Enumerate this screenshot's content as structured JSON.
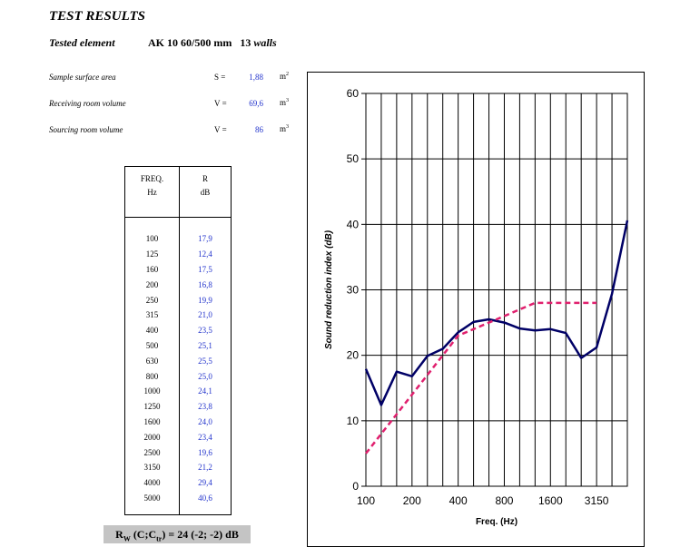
{
  "header": {
    "title": "TEST RESULTS",
    "tested_label": "Tested element",
    "tested_value": "AK 10 60/500 mm",
    "tested_count": "13",
    "tested_suffix": "walls"
  },
  "properties": [
    {
      "label": "Sample surface area",
      "symbol": "S =",
      "value": "1,88",
      "unit": "m",
      "exp": "2"
    },
    {
      "label": "Receiving room volume",
      "symbol": "V =",
      "value": "69,6",
      "unit": "m",
      "exp": "3"
    },
    {
      "label": "Sourcing room volume",
      "symbol": "V =",
      "value": "86",
      "unit": "m",
      "exp": "3"
    }
  ],
  "table": {
    "col1_header": "FREQ.",
    "col1_unit": "Hz",
    "col2_header": "R",
    "col2_unit": "dB",
    "rows": [
      [
        "100",
        "17,9"
      ],
      [
        "125",
        "12,4"
      ],
      [
        "160",
        "17,5"
      ],
      [
        "200",
        "16,8"
      ],
      [
        "250",
        "19,9"
      ],
      [
        "315",
        "21,0"
      ],
      [
        "400",
        "23,5"
      ],
      [
        "500",
        "25,1"
      ],
      [
        "630",
        "25,5"
      ],
      [
        "800",
        "25,0"
      ],
      [
        "1000",
        "24,1"
      ],
      [
        "1250",
        "23,8"
      ],
      [
        "1600",
        "24,0"
      ],
      [
        "2000",
        "23,4"
      ],
      [
        "2500",
        "19,6"
      ],
      [
        "3150",
        "21,2"
      ],
      [
        "4000",
        "29,4"
      ],
      [
        "5000",
        "40,6"
      ]
    ]
  },
  "rating": {
    "r": "R",
    "w": "W",
    "mid": " (C;C",
    "tr": "tr",
    "end": ") = 24 (-2; -2) dB"
  },
  "chart_data": {
    "type": "line",
    "x": [
      100,
      125,
      160,
      200,
      250,
      315,
      400,
      500,
      630,
      800,
      1000,
      1250,
      1600,
      2000,
      2500,
      3150,
      4000,
      5000
    ],
    "xlabel": "Freq.  (Hz)",
    "ylabel": "Sound reduction index (dB)",
    "x_tick_labels": [
      "100",
      "200",
      "400",
      "800",
      "1600",
      "3150"
    ],
    "x_tick_values": [
      100,
      200,
      400,
      800,
      1600,
      3150
    ],
    "ylim": [
      0,
      60
    ],
    "y_ticks": [
      0,
      10,
      20,
      30,
      40,
      50,
      60
    ],
    "grid": true,
    "series": [
      {
        "color": "#000066",
        "style": "solid",
        "values": [
          17.9,
          12.4,
          17.5,
          16.8,
          19.9,
          21.0,
          23.5,
          25.1,
          25.5,
          25.0,
          24.1,
          23.8,
          24.0,
          23.4,
          19.6,
          21.2,
          29.4,
          40.6
        ]
      },
      {
        "color": "#e0206e",
        "style": "dashed",
        "values": [
          5,
          8,
          11,
          14,
          17,
          20,
          23,
          24,
          25,
          26,
          27,
          28,
          28,
          28,
          28,
          28,
          null,
          null
        ]
      }
    ]
  }
}
